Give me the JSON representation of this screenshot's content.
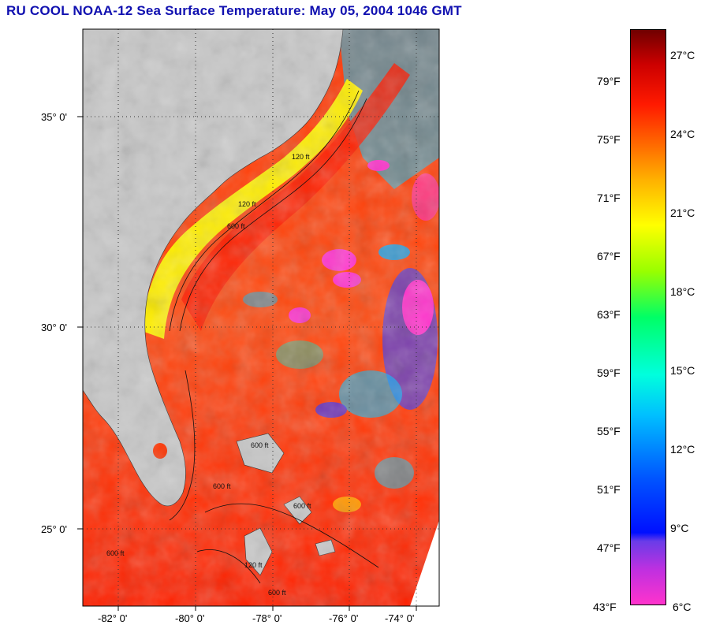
{
  "title": "RU COOL  NOAA-12  Sea Surface Temperature:  May 05, 2004 1046 GMT",
  "map": {
    "lat_labels": [
      {
        "value": 35,
        "text": "35° 0'"
      },
      {
        "value": 30,
        "text": "30° 0'"
      },
      {
        "value": 25,
        "text": "25° 0'"
      }
    ],
    "lon_labels": [
      {
        "value": -82,
        "text": "-82° 0'"
      },
      {
        "value": -80,
        "text": "-80° 0'"
      },
      {
        "value": -78,
        "text": "-78° 0'"
      },
      {
        "value": -76,
        "text": "-76° 0'"
      },
      {
        "value": -74,
        "text": "-74° 0'"
      }
    ],
    "contour_labels": [
      "120 ft",
      "600 ft",
      "120 ft",
      "600 ft",
      "600 ft",
      "600 ft",
      "600 ft",
      "120 ft",
      "600 ft"
    ],
    "colors": {
      "land": "#c8c8c8",
      "ocean_warm": "#ff2a10",
      "shelf": "#ffee00",
      "cold": "#ff33cc"
    }
  },
  "colorbar": {
    "fahrenheit": [
      "79°F",
      "75°F",
      "71°F",
      "67°F",
      "63°F",
      "59°F",
      "55°F",
      "51°F",
      "47°F",
      "43°F"
    ],
    "celsius": [
      "27°C",
      "24°C",
      "21°C",
      "18°C",
      "15°C",
      "12°C",
      "9°C",
      "6°C"
    ]
  }
}
